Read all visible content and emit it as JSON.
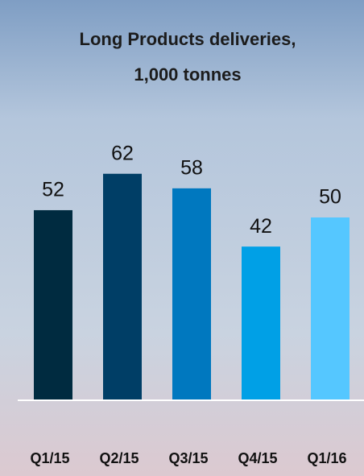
{
  "chart_data": {
    "type": "bar",
    "title": "Long Products deliveries,",
    "subtitle": "1,000 tonnes",
    "categories": [
      "Q1/15",
      "Q2/15",
      "Q3/15",
      "Q4/15",
      "Q1/16"
    ],
    "values": [
      52,
      62,
      58,
      42,
      50
    ],
    "colors": [
      "#002b40",
      "#003e66",
      "#0078bf",
      "#00a0e6",
      "#55c7ff"
    ]
  }
}
